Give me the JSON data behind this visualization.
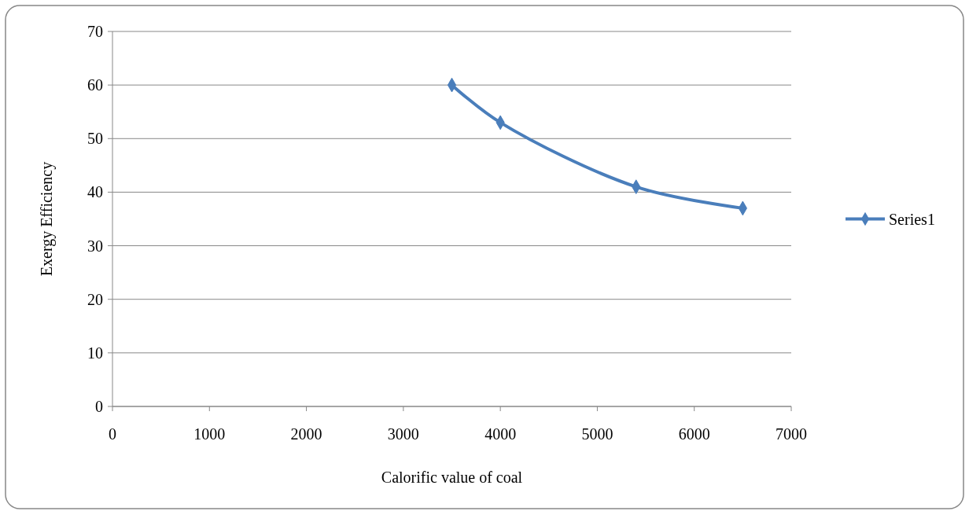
{
  "chart_data": {
    "type": "line",
    "xlabel": "Calorific value of coal",
    "ylabel": "Exergy Efficiency",
    "x": [
      3500,
      4000,
      5400,
      6500
    ],
    "series": [
      {
        "name": "Series1",
        "color": "#4a7ebb",
        "values": [
          60,
          53,
          41,
          37
        ]
      }
    ],
    "xlim": [
      0,
      7000
    ],
    "xticks": [
      0,
      1000,
      2000,
      3000,
      4000,
      5000,
      6000,
      7000
    ],
    "ylim": [
      0,
      70
    ],
    "yticks": [
      0,
      10,
      20,
      30,
      40,
      50,
      60,
      70
    ],
    "grid": "y",
    "legend": "right",
    "marker": "diamond",
    "line_style": "solid"
  }
}
